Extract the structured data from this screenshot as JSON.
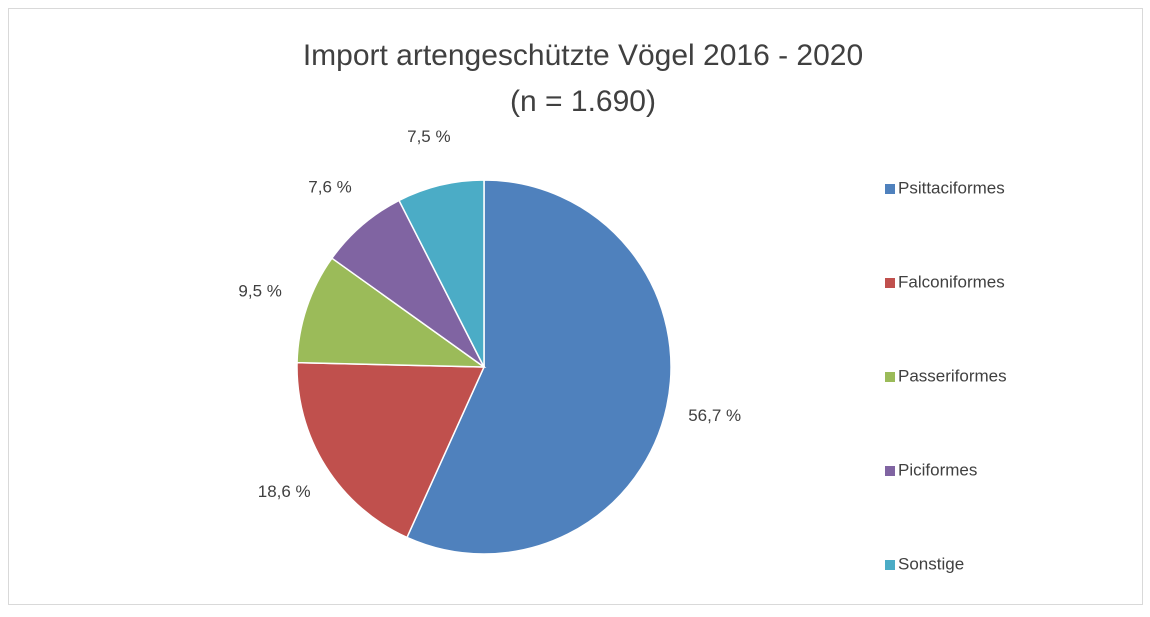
{
  "chart_data": {
    "type": "pie",
    "title": [
      "Import artengeschützte Vögel 2016 - 2020",
      "(n = 1.690)"
    ],
    "categories": [
      "Psittaciformes",
      "Falconiformes",
      "Passeriformes",
      "Piciformes",
      "Sonstige"
    ],
    "values": [
      56.7,
      18.6,
      9.5,
      7.6,
      7.5
    ],
    "value_labels": [
      "56,7 %",
      "18,6 %",
      "9,5 %",
      "7,6 %",
      "7,5 %"
    ],
    "colors": [
      "#4f81bd",
      "#c0504d",
      "#9bbb59",
      "#8064a2",
      "#4bacc6"
    ],
    "legend": "right"
  }
}
